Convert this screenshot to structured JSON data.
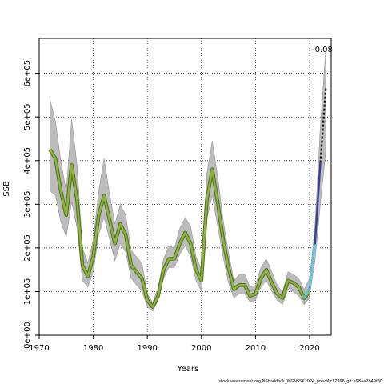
{
  "chart_data": {
    "type": "line",
    "title": "",
    "xlabel": "Years",
    "ylabel": "SSB",
    "xlim": [
      1970,
      2024
    ],
    "ylim": [
      0,
      680000
    ],
    "x_ticks": [
      1970,
      1980,
      1990,
      2000,
      2010,
      2020
    ],
    "x_tick_labels": [
      "1970",
      "1980",
      "1990",
      "2000",
      "2010",
      "2020"
    ],
    "y_ticks": [
      0,
      100000,
      200000,
      300000,
      400000,
      500000,
      600000
    ],
    "y_tick_labels": [
      "0e+00",
      "1e+05",
      "2e+05",
      "3e+05",
      "4e+05",
      "5e+05",
      "6e+05"
    ],
    "grid": true,
    "annotation": "-0.08",
    "footer": "stockassessment.org,NShaddock_WGNSSK2024_prevM,r17996_git:e98aa2b49f80",
    "colors": {
      "band": "#bcbcbc",
      "estimate": "#8db33c",
      "estimate_edge": "#4f6e1f",
      "retro": "#3a3f9c",
      "retro_light": "#58c8e8",
      "forecast": "#111111"
    },
    "series": [
      {
        "x": [
          1972,
          1973,
          1974,
          1975,
          1976,
          1977,
          1978,
          1979,
          1980,
          1981,
          1982,
          1983,
          1984,
          1985,
          1986,
          1987,
          1988,
          1989,
          1990,
          1991,
          1992,
          1993,
          1994,
          1995,
          1996,
          1997,
          1998,
          1999,
          2000,
          2001,
          2002,
          2003,
          2004,
          2005,
          2006,
          2007,
          2008,
          2009,
          2010,
          2011,
          2012,
          2013,
          2014,
          2015,
          2016,
          2017,
          2018,
          2019,
          2020
        ],
        "y": [
          425000,
          405000,
          330000,
          275000,
          390000,
          310000,
          160000,
          135000,
          180000,
          275000,
          320000,
          265000,
          210000,
          255000,
          230000,
          160000,
          145000,
          130000,
          80000,
          65000,
          90000,
          150000,
          175000,
          175000,
          210000,
          235000,
          210000,
          150000,
          125000,
          310000,
          380000,
          305000,
          220000,
          155000,
          105000,
          115000,
          115000,
          90000,
          95000,
          130000,
          150000,
          120000,
          95000,
          85000,
          125000,
          120000,
          110000,
          85000,
          100000
        ],
        "lower": [
          330000,
          320000,
          260000,
          225000,
          305000,
          245000,
          125000,
          110000,
          145000,
          230000,
          270000,
          220000,
          170000,
          210000,
          190000,
          130000,
          115000,
          100000,
          65000,
          55000,
          80000,
          130000,
          155000,
          155000,
          185000,
          205000,
          180000,
          125000,
          100000,
          265000,
          320000,
          250000,
          180000,
          120000,
          85000,
          95000,
          95000,
          75000,
          80000,
          110000,
          125000,
          100000,
          80000,
          70000,
          105000,
          100000,
          90000,
          70000,
          85000
        ],
        "upper": [
          540000,
          490000,
          400000,
          330000,
          495000,
          390000,
          200000,
          165000,
          220000,
          330000,
          405000,
          325000,
          255000,
          300000,
          275000,
          195000,
          180000,
          165000,
          95000,
          75000,
          110000,
          175000,
          205000,
          200000,
          245000,
          270000,
          250000,
          180000,
          150000,
          370000,
          445000,
          365000,
          265000,
          190000,
          125000,
          140000,
          140000,
          110000,
          115000,
          155000,
          175000,
          145000,
          115000,
          100000,
          145000,
          140000,
          130000,
          105000,
          120000
        ]
      },
      {
        "x": [
          2019,
          2020,
          2021,
          2022,
          2023
        ],
        "y": [
          85000,
          110000,
          210000,
          395000,
          565000
        ],
        "lower": [
          70000,
          90000,
          170000,
          300000,
          420000
        ],
        "upper": [
          105000,
          130000,
          250000,
          480000,
          655000
        ]
      }
    ]
  }
}
